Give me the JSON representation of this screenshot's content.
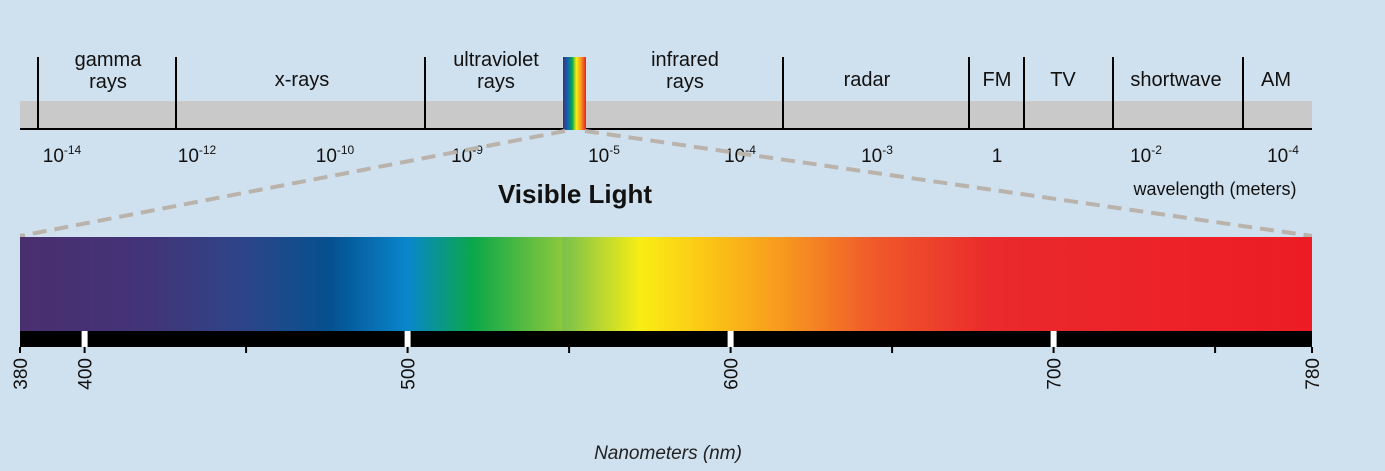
{
  "em_spectrum": {
    "bands": [
      {
        "line1": "gamma",
        "line2": "rays"
      },
      {
        "line1": "x-rays",
        "line2": ""
      },
      {
        "line1": "ultraviolet",
        "line2": "rays"
      },
      {
        "line1": "infrared",
        "line2": "rays"
      },
      {
        "line1": "radar",
        "line2": ""
      },
      {
        "line1": "FM",
        "line2": ""
      },
      {
        "line1": "TV",
        "line2": ""
      },
      {
        "line1": "shortwave",
        "line2": ""
      },
      {
        "line1": "AM",
        "line2": ""
      }
    ],
    "wavelength_ticks": [
      {
        "base": "10",
        "exp": "-14"
      },
      {
        "base": "10",
        "exp": "-12"
      },
      {
        "base": "10",
        "exp": "-10"
      },
      {
        "base": "10",
        "exp": "-9"
      },
      {
        "base": "10",
        "exp": "-5"
      },
      {
        "base": "10",
        "exp": "-4"
      },
      {
        "base": "10",
        "exp": "-3"
      },
      {
        "base": "1",
        "exp": ""
      },
      {
        "base": "10",
        "exp": "-2"
      },
      {
        "base": "10",
        "exp": "-4"
      }
    ],
    "axis_label": "wavelength (meters)"
  },
  "visible_light": {
    "title": "Visible Light",
    "range_nm": [
      380,
      780
    ],
    "labeled_ticks_nm": [
      380,
      400,
      500,
      600,
      700,
      780
    ],
    "minor_ticks_nm": [
      450,
      550,
      650,
      750
    ],
    "axis_label": "Nanometers (nm)",
    "colors": [
      "#4a2f6e",
      "#3d3a82",
      "#06508f",
      "#0a86cc",
      "#0aa74a",
      "#f8ee14",
      "#f9b515",
      "#f2622a",
      "#ea2a2c",
      "#ed1c24"
    ]
  }
}
